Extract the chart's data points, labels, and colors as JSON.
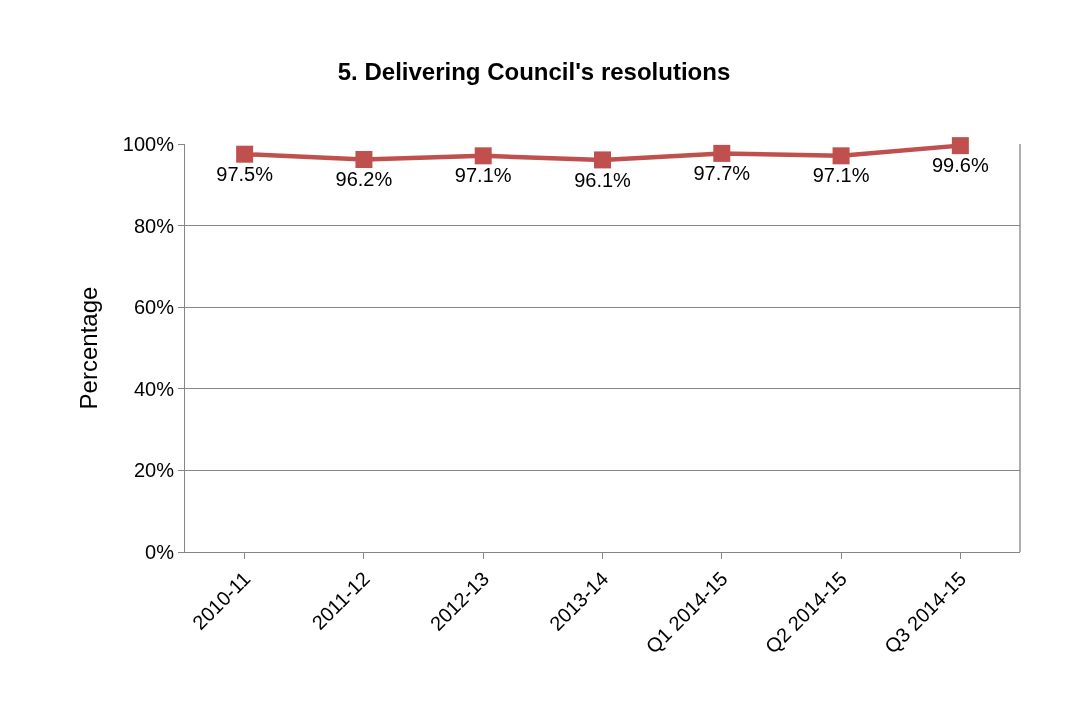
{
  "chart_data": {
    "type": "line",
    "title": "5. Delivering Council's resolutions",
    "ylabel": "Percentage",
    "categories": [
      "2010-11",
      "2011-12",
      "2012-13",
      "2013-14",
      "Q1 2014-15",
      "Q2 2014-15",
      "Q3 2014-15"
    ],
    "series": [
      {
        "color": "#c0504d",
        "values": [
          97.5,
          96.2,
          97.1,
          96.1,
          97.7,
          97.1,
          99.6
        ],
        "value_labels": [
          "97.5%",
          "96.2%",
          "97.1%",
          "96.1%",
          "97.7%",
          "97.1%",
          "99.6%"
        ]
      }
    ],
    "ylim": [
      0,
      100
    ],
    "yticks": [
      {
        "value": 0,
        "label": "0%"
      },
      {
        "value": 20,
        "label": "20%"
      },
      {
        "value": 40,
        "label": "40%"
      },
      {
        "value": 60,
        "label": "60%"
      },
      {
        "value": 80,
        "label": "80%"
      },
      {
        "value": 100,
        "label": "100%"
      }
    ],
    "grid": "y",
    "marker": "square",
    "line_style": "solid",
    "legend": false
  }
}
